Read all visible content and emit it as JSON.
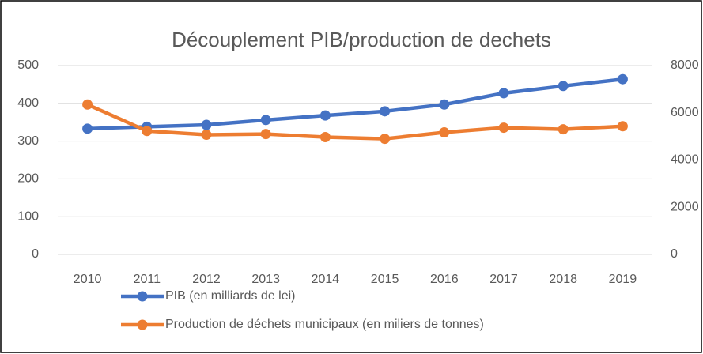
{
  "chart_data": {
    "type": "line",
    "title": "Découplement PIB/production de dechets",
    "categories": [
      "2010",
      "2011",
      "2012",
      "2013",
      "2014",
      "2015",
      "2016",
      "2017",
      "2018",
      "2019"
    ],
    "series": [
      {
        "name": "PIB (en milliards de lei)",
        "color": "#4472c4",
        "values": [
          333,
          338,
          343,
          356,
          368,
          379,
          397,
          427,
          446,
          464
        ]
      },
      {
        "name": "Production de déchets municipaux (en miliers de tonnes)",
        "color": "#ed7d31",
        "axis": "y2",
        "values": [
          6350,
          5230,
          5070,
          5100,
          4970,
          4900,
          5170,
          5370,
          5300,
          5430
        ]
      }
    ],
    "ylim": [
      0,
      500
    ],
    "yticks": [
      0,
      100,
      200,
      300,
      400,
      500
    ],
    "y2lim": [
      0,
      8000
    ],
    "y2ticks": [
      0,
      2000,
      4000,
      6000,
      8000
    ],
    "grid": true,
    "legend": "bottom"
  }
}
